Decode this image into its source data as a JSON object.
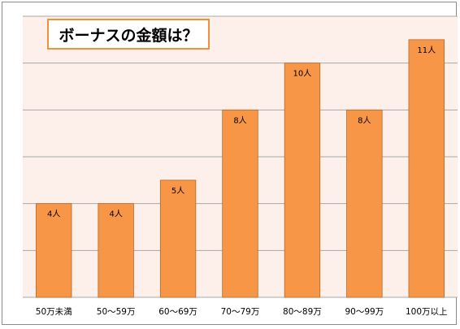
{
  "colors": {
    "plot_background": "#fdf0ea",
    "bar_fill": "#f79646",
    "bar_stroke": "#b5682a",
    "gridline": "#a8a8a8",
    "title_border": "#f39137"
  },
  "chart_data": {
    "type": "bar",
    "title": "ボーナスの金額は？",
    "xlabel": "",
    "ylabel": "",
    "ylim": [
      0,
      12
    ],
    "grid": true,
    "categories": [
      "50万未満",
      "50～59万",
      "60～69万",
      "70～79万",
      "80～89万",
      "90～99万",
      "100万以上"
    ],
    "values": [
      4,
      4,
      5,
      8,
      10,
      8,
      11
    ],
    "data_labels": [
      "4人",
      "4人",
      "5人",
      "8人",
      "10人",
      "8人",
      "11人"
    ]
  }
}
